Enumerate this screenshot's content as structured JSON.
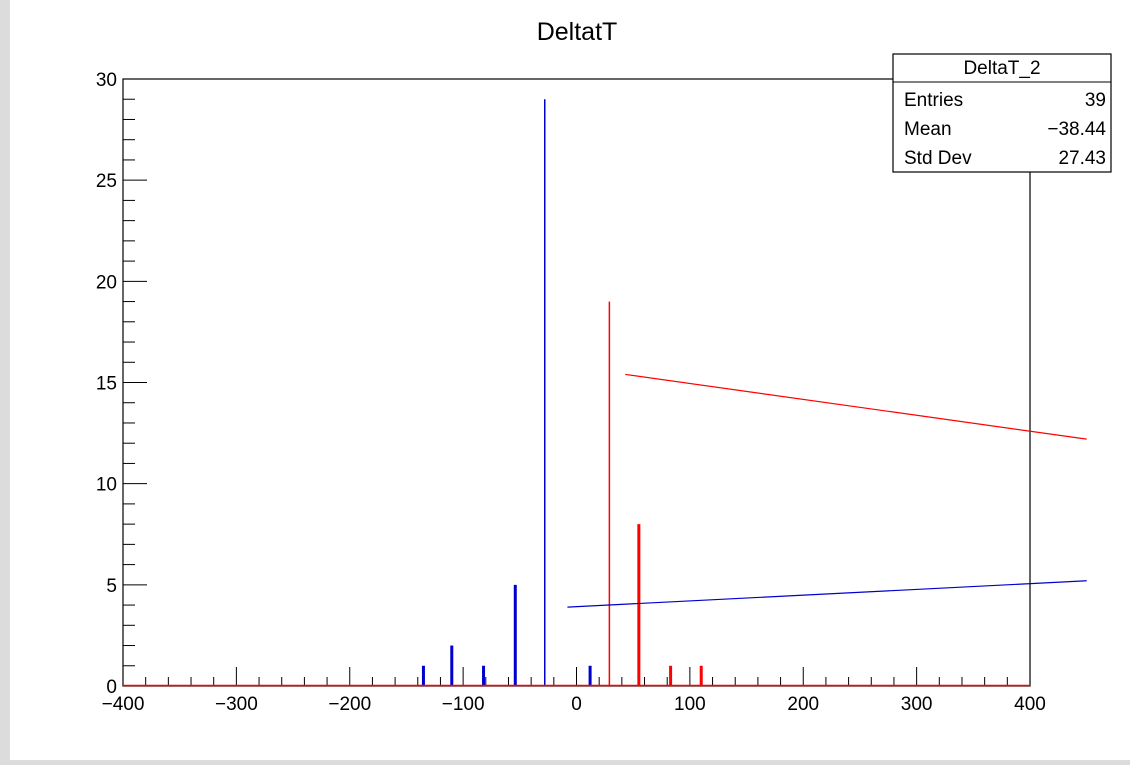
{
  "chart_data": {
    "type": "bar",
    "title": "DeltatT",
    "xlabel": "",
    "ylabel": "",
    "xlim": [
      -400,
      400
    ],
    "ylim": [
      0,
      30
    ],
    "x_ticks": [
      -400,
      -300,
      -200,
      -100,
      0,
      100,
      200,
      300,
      400
    ],
    "x_tick_labels": [
      "−400",
      "−300",
      "−200",
      "−100",
      "0",
      "100",
      "200",
      "300",
      "400"
    ],
    "y_ticks": [
      0,
      5,
      10,
      15,
      20,
      25,
      30
    ],
    "y_tick_labels": [
      "0",
      "5",
      "10",
      "15",
      "20",
      "25",
      "30"
    ],
    "series": [
      {
        "color": "#0000cc",
        "bars": [
          {
            "x": -135,
            "y": 1
          },
          {
            "x": -110,
            "y": 2
          },
          {
            "x": -82,
            "y": 1
          },
          {
            "x": -54,
            "y": 5
          },
          {
            "x": -28,
            "y": 29
          },
          {
            "x": 12,
            "y": 1
          }
        ]
      },
      {
        "color": "#ff0000",
        "bars": [
          {
            "x": 29,
            "y": 19
          },
          {
            "x": 55,
            "y": 8
          },
          {
            "x": 83,
            "y": 1
          },
          {
            "x": 110,
            "y": 1
          }
        ]
      }
    ],
    "lines": [
      {
        "color": "#ff0000",
        "from": [
          43,
          15.4
        ],
        "to": [
          450,
          12.2
        ]
      },
      {
        "color": "#0000cc",
        "from": [
          -8,
          3.9
        ],
        "to": [
          450,
          5.2
        ]
      }
    ],
    "stats": {
      "name": "DeltaT_2",
      "rows": [
        {
          "label": "Entries",
          "value": "39"
        },
        {
          "label": "Mean",
          "value": "−38.44"
        },
        {
          "label": "Std Dev",
          "value": "27.43"
        }
      ]
    }
  }
}
